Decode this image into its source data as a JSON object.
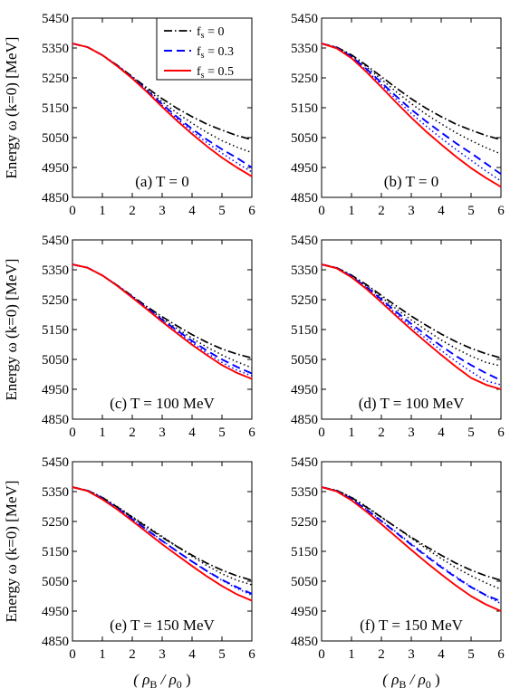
{
  "figure": {
    "ylabel": "Energy ω (k=0)  [MeV]",
    "xlabel": "( ρB / ρ0 )"
  },
  "colors": {
    "fs_0": "#000000",
    "fs_0_2": "#000000",
    "fs_0_3": "#0000ff",
    "fs_0_4": "#0000ff",
    "fs_0_5": "#ff0000"
  },
  "legend": {
    "placement": "top-right of panel (a)",
    "entries": [
      "fs = 0",
      "fs = 0.3",
      "fs = 0.5"
    ]
  },
  "chart_data": [
    {
      "type": "line",
      "panel": "a",
      "label": "(a) T = 0",
      "xlim": [
        0,
        6
      ],
      "ylim": [
        4850,
        5450
      ],
      "xticks": [
        0,
        1,
        2,
        3,
        4,
        5,
        6
      ],
      "yticks": [
        4850,
        4950,
        5050,
        5150,
        5250,
        5350,
        5450
      ],
      "x": [
        0,
        0.5,
        1,
        1.5,
        2,
        2.5,
        3,
        3.5,
        4,
        4.5,
        5,
        5.5,
        6
      ],
      "series": [
        {
          "key": "fs_0",
          "name": "fs = 0",
          "style": "dashdot",
          "values": [
            5365,
            5353,
            5326,
            5292,
            5254,
            5216,
            5180,
            5148,
            5120,
            5095,
            5075,
            5057,
            5043
          ]
        },
        {
          "key": "fs_0_2",
          "style": "dotted",
          "values": [
            5365,
            5353,
            5326,
            5291,
            5252,
            5211,
            5170,
            5132,
            5098,
            5067,
            5040,
            5018,
            5000
          ]
        },
        {
          "key": "fs_0_3",
          "name": "fs = 0.3",
          "style": "dashed",
          "values": [
            5365,
            5353,
            5326,
            5290,
            5250,
            5206,
            5162,
            5119,
            5079,
            5043,
            5011,
            4982,
            4950
          ]
        },
        {
          "key": "fs_0_4",
          "style": "dotted",
          "values": [
            5365,
            5353,
            5326,
            5290,
            5249,
            5204,
            5158,
            5113,
            5071,
            5033,
            4998,
            4965,
            4935
          ]
        },
        {
          "key": "fs_0_5",
          "name": "fs = 0.5",
          "style": "solid",
          "values": [
            5365,
            5353,
            5326,
            5289,
            5248,
            5202,
            5153,
            5106,
            5062,
            5021,
            4983,
            4950,
            4920
          ]
        }
      ]
    },
    {
      "type": "line",
      "panel": "b",
      "label": "(b) T = 0",
      "xlim": [
        0,
        6
      ],
      "ylim": [
        4850,
        5450
      ],
      "xticks": [
        0,
        1,
        2,
        3,
        4,
        5,
        6
      ],
      "yticks": [
        4850,
        4950,
        5050,
        5150,
        5250,
        5350,
        5450
      ],
      "x": [
        0,
        0.5,
        1,
        1.5,
        2,
        2.5,
        3,
        3.5,
        4,
        4.5,
        5,
        5.5,
        6
      ],
      "series": [
        {
          "key": "fs_0",
          "style": "dashdot",
          "values": [
            5365,
            5353,
            5327,
            5292,
            5254,
            5216,
            5180,
            5148,
            5120,
            5095,
            5075,
            5057,
            5043
          ]
        },
        {
          "key": "fs_0_2",
          "style": "dotted",
          "values": [
            5365,
            5352,
            5324,
            5287,
            5245,
            5203,
            5164,
            5128,
            5096,
            5066,
            5040,
            5016,
            4995
          ]
        },
        {
          "key": "fs_0_3",
          "style": "dashed",
          "values": [
            5365,
            5351,
            5321,
            5280,
            5234,
            5188,
            5144,
            5104,
            5067,
            5031,
            4998,
            4963,
            4928
          ]
        },
        {
          "key": "fs_0_4",
          "style": "dotted",
          "values": [
            5365,
            5350,
            5319,
            5276,
            5227,
            5178,
            5131,
            5088,
            5048,
            5010,
            4974,
            4938,
            4905
          ]
        },
        {
          "key": "fs_0_5",
          "style": "solid",
          "values": [
            5365,
            5349,
            5316,
            5270,
            5219,
            5167,
            5117,
            5070,
            5027,
            4986,
            4948,
            4915,
            4885
          ]
        }
      ]
    },
    {
      "type": "line",
      "panel": "c",
      "label": "(c) T = 100 MeV",
      "xlim": [
        0,
        6
      ],
      "ylim": [
        4850,
        5450
      ],
      "xticks": [
        0,
        1,
        2,
        3,
        4,
        5,
        6
      ],
      "yticks": [
        4850,
        4950,
        5050,
        5150,
        5250,
        5350,
        5450
      ],
      "x": [
        0,
        0.5,
        1,
        1.5,
        2,
        2.5,
        3,
        3.5,
        4,
        4.5,
        5,
        5.5,
        6
      ],
      "series": [
        {
          "key": "fs_0",
          "style": "dashdot",
          "values": [
            5368,
            5357,
            5331,
            5298,
            5262,
            5226,
            5193,
            5162,
            5133,
            5107,
            5085,
            5068,
            5055
          ]
        },
        {
          "key": "fs_0_2",
          "style": "dotted",
          "values": [
            5368,
            5357,
            5331,
            5297,
            5260,
            5223,
            5187,
            5153,
            5121,
            5091,
            5065,
            5042,
            5022
          ]
        },
        {
          "key": "fs_0_3",
          "style": "dashed",
          "values": [
            5368,
            5357,
            5331,
            5297,
            5259,
            5221,
            5183,
            5147,
            5112,
            5079,
            5050,
            5025,
            5003
          ]
        },
        {
          "key": "fs_0_4",
          "style": "dotted",
          "values": [
            5368,
            5357,
            5331,
            5297,
            5258,
            5219,
            5180,
            5142,
            5106,
            5071,
            5040,
            5014,
            4995
          ]
        },
        {
          "key": "fs_0_5",
          "style": "solid",
          "values": [
            5368,
            5357,
            5331,
            5296,
            5257,
            5217,
            5176,
            5137,
            5099,
            5064,
            5031,
            5005,
            4985
          ]
        }
      ]
    },
    {
      "type": "line",
      "panel": "d",
      "label": "(d) T = 100 MeV",
      "xlim": [
        0,
        6
      ],
      "ylim": [
        4850,
        5450
      ],
      "xticks": [
        0,
        1,
        2,
        3,
        4,
        5,
        6
      ],
      "yticks": [
        4850,
        4950,
        5050,
        5150,
        5250,
        5350,
        5450
      ],
      "x": [
        0,
        0.5,
        1,
        1.5,
        2,
        2.5,
        3,
        3.5,
        4,
        4.5,
        5,
        5.5,
        6
      ],
      "series": [
        {
          "key": "fs_0",
          "style": "dashdot",
          "values": [
            5368,
            5357,
            5332,
            5300,
            5264,
            5229,
            5195,
            5164,
            5135,
            5109,
            5087,
            5069,
            5055
          ]
        },
        {
          "key": "fs_0_2",
          "style": "dotted",
          "values": [
            5368,
            5357,
            5330,
            5296,
            5258,
            5219,
            5182,
            5148,
            5115,
            5086,
            5061,
            5040,
            5028
          ]
        },
        {
          "key": "fs_0_3",
          "style": "dashed",
          "values": [
            5368,
            5356,
            5328,
            5292,
            5251,
            5209,
            5169,
            5131,
            5095,
            5061,
            5031,
            5004,
            4980
          ]
        },
        {
          "key": "fs_0_4",
          "style": "dotted",
          "values": [
            5368,
            5356,
            5327,
            5289,
            5246,
            5202,
            5160,
            5119,
            5080,
            5043,
            5009,
            4978,
            4965
          ]
        },
        {
          "key": "fs_0_5",
          "style": "solid",
          "values": [
            5368,
            5355,
            5325,
            5286,
            5241,
            5195,
            5150,
            5107,
            5065,
            5025,
            4988,
            4965,
            4950
          ]
        }
      ]
    },
    {
      "type": "line",
      "panel": "e",
      "label": "(e) T = 150 MeV",
      "xlim": [
        0,
        6
      ],
      "ylim": [
        4850,
        5450
      ],
      "xticks": [
        0,
        1,
        2,
        3,
        4,
        5,
        6
      ],
      "yticks": [
        4850,
        4950,
        5050,
        5150,
        5250,
        5350,
        5450
      ],
      "x": [
        0,
        0.5,
        1,
        1.5,
        2,
        2.5,
        3,
        3.5,
        4,
        4.5,
        5,
        5.5,
        6
      ],
      "series": [
        {
          "key": "fs_0",
          "style": "dashdot",
          "values": [
            5365,
            5354,
            5330,
            5298,
            5264,
            5230,
            5197,
            5166,
            5137,
            5110,
            5087,
            5068,
            5053
          ]
        },
        {
          "key": "fs_0_2",
          "style": "dotted",
          "values": [
            5365,
            5354,
            5331,
            5300,
            5266,
            5233,
            5200,
            5166,
            5133,
            5102,
            5075,
            5053,
            5038
          ]
        },
        {
          "key": "fs_0_3",
          "style": "dashed",
          "values": [
            5365,
            5353,
            5327,
            5294,
            5258,
            5221,
            5185,
            5150,
            5116,
            5084,
            5055,
            5030,
            5008
          ]
        },
        {
          "key": "fs_0_4",
          "style": "dotted",
          "values": [
            5365,
            5353,
            5328,
            5295,
            5259,
            5222,
            5186,
            5150,
            5116,
            5083,
            5053,
            5026,
            5003
          ]
        },
        {
          "key": "fs_0_5",
          "style": "solid",
          "values": [
            5365,
            5352,
            5324,
            5290,
            5252,
            5213,
            5174,
            5137,
            5101,
            5066,
            5034,
            5006,
            4985
          ]
        }
      ]
    },
    {
      "type": "line",
      "panel": "f",
      "label": "(f) T = 150 MeV",
      "xlim": [
        0,
        6
      ],
      "ylim": [
        4850,
        5450
      ],
      "xticks": [
        0,
        1,
        2,
        3,
        4,
        5,
        6
      ],
      "yticks": [
        4850,
        4950,
        5050,
        5150,
        5250,
        5350,
        5450
      ],
      "x": [
        0,
        0.5,
        1,
        1.5,
        2,
        2.5,
        3,
        3.5,
        4,
        4.5,
        5,
        5.5,
        6
      ],
      "series": [
        {
          "key": "fs_0",
          "style": "dashdot",
          "values": [
            5365,
            5354,
            5330,
            5298,
            5264,
            5230,
            5197,
            5166,
            5137,
            5110,
            5087,
            5068,
            5053
          ]
        },
        {
          "key": "fs_0_2",
          "style": "dotted",
          "values": [
            5365,
            5354,
            5331,
            5300,
            5265,
            5230,
            5194,
            5159,
            5126,
            5095,
            5068,
            5044,
            5023
          ]
        },
        {
          "key": "fs_0_3",
          "style": "dashed",
          "values": [
            5365,
            5352,
            5325,
            5290,
            5251,
            5212,
            5172,
            5134,
            5097,
            5062,
            5030,
            5003,
            4983
          ]
        },
        {
          "key": "fs_0_4",
          "style": "dotted",
          "values": [
            5365,
            5352,
            5326,
            5291,
            5253,
            5214,
            5175,
            5137,
            5100,
            5065,
            5032,
            5002,
            4975
          ]
        },
        {
          "key": "fs_0_5",
          "style": "solid",
          "values": [
            5365,
            5351,
            5321,
            5283,
            5241,
            5198,
            5155,
            5113,
            5073,
            5035,
            5000,
            4972,
            4950
          ]
        }
      ]
    }
  ]
}
